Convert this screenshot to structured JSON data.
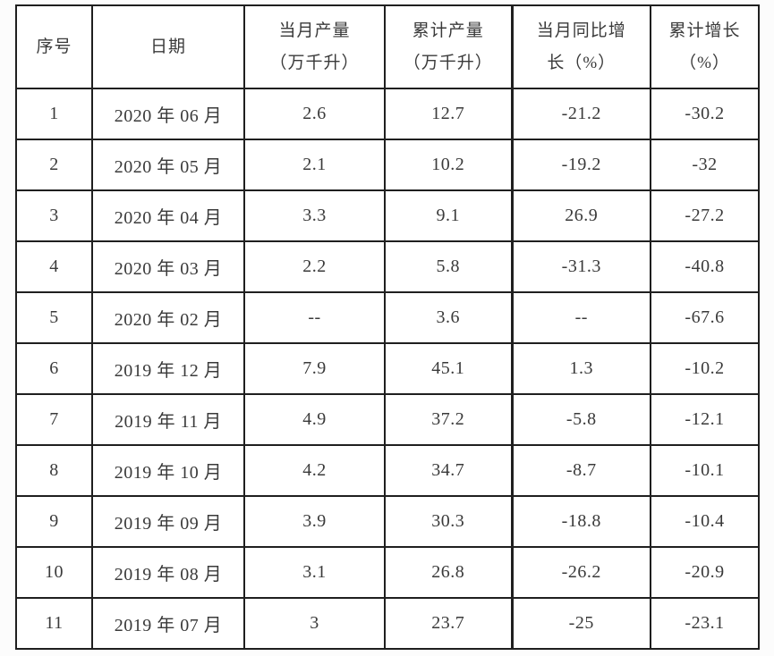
{
  "page": {
    "background_color": "#fcfcfc",
    "cell_background_color": "#ffffff",
    "border_color": "#1f1f1f",
    "text_color": "#3a3a3a"
  },
  "table": {
    "columns": [
      {
        "id": "index",
        "label": "序号",
        "label_lines": [
          "序号"
        ]
      },
      {
        "id": "date",
        "label": "日期",
        "label_lines": [
          "日期"
        ]
      },
      {
        "id": "monthly_output",
        "label": "当月产量（万千升）",
        "label_lines": [
          "当月产量",
          "（万千升）"
        ]
      },
      {
        "id": "cumulative_output",
        "label": "累计产量（万千升）",
        "label_lines": [
          "累计产量",
          "（万千升）"
        ]
      },
      {
        "id": "monthly_yoy_growth",
        "label": "当月同比增长（%）",
        "label_lines": [
          "当月同比增",
          "长（%）"
        ]
      },
      {
        "id": "cumulative_growth",
        "label": "累计增长（%）",
        "label_lines": [
          "累计增长",
          "（%）"
        ]
      }
    ],
    "rows": [
      {
        "index": "1",
        "date": "2020 年 06 月",
        "monthly_output": "2.6",
        "cumulative_output": "12.7",
        "monthly_yoy_growth": "-21.2",
        "cumulative_growth": "-30.2"
      },
      {
        "index": "2",
        "date": "2020 年 05 月",
        "monthly_output": "2.1",
        "cumulative_output": "10.2",
        "monthly_yoy_growth": "-19.2",
        "cumulative_growth": "-32"
      },
      {
        "index": "3",
        "date": "2020 年 04 月",
        "monthly_output": "3.3",
        "cumulative_output": "9.1",
        "monthly_yoy_growth": "26.9",
        "cumulative_growth": "-27.2"
      },
      {
        "index": "4",
        "date": "2020 年 03 月",
        "monthly_output": "2.2",
        "cumulative_output": "5.8",
        "monthly_yoy_growth": "-31.3",
        "cumulative_growth": "-40.8"
      },
      {
        "index": "5",
        "date": "2020 年 02 月",
        "monthly_output": "--",
        "cumulative_output": "3.6",
        "monthly_yoy_growth": "--",
        "cumulative_growth": "-67.6"
      },
      {
        "index": "6",
        "date": "2019 年 12 月",
        "monthly_output": "7.9",
        "cumulative_output": "45.1",
        "monthly_yoy_growth": "1.3",
        "cumulative_growth": "-10.2"
      },
      {
        "index": "7",
        "date": "2019 年 11 月",
        "monthly_output": "4.9",
        "cumulative_output": "37.2",
        "monthly_yoy_growth": "-5.8",
        "cumulative_growth": "-12.1"
      },
      {
        "index": "8",
        "date": "2019 年 10 月",
        "monthly_output": "4.2",
        "cumulative_output": "34.7",
        "monthly_yoy_growth": "-8.7",
        "cumulative_growth": "-10.1"
      },
      {
        "index": "9",
        "date": "2019 年 09 月",
        "monthly_output": "3.9",
        "cumulative_output": "30.3",
        "monthly_yoy_growth": "-18.8",
        "cumulative_growth": "-10.4"
      },
      {
        "index": "10",
        "date": "2019 年 08 月",
        "monthly_output": "3.1",
        "cumulative_output": "26.8",
        "monthly_yoy_growth": "-26.2",
        "cumulative_growth": "-20.9"
      },
      {
        "index": "11",
        "date": "2019 年 07 月",
        "monthly_output": "3",
        "cumulative_output": "23.7",
        "monthly_yoy_growth": "-25",
        "cumulative_growth": "-23.1"
      }
    ]
  },
  "chart_data": {
    "type": "table",
    "title": "",
    "columns": [
      "序号",
      "日期",
      "当月产量（万千升）",
      "累计产量（万千升）",
      "当月同比增长（%）",
      "累计增长（%）"
    ],
    "rows": [
      [
        "1",
        "2020 年 06 月",
        "2.6",
        "12.7",
        "-21.2",
        "-30.2"
      ],
      [
        "2",
        "2020 年 05 月",
        "2.1",
        "10.2",
        "-19.2",
        "-32"
      ],
      [
        "3",
        "2020 年 04 月",
        "3.3",
        "9.1",
        "26.9",
        "-27.2"
      ],
      [
        "4",
        "2020 年 03 月",
        "2.2",
        "5.8",
        "-31.3",
        "-40.8"
      ],
      [
        "5",
        "2020 年 02 月",
        "--",
        "3.6",
        "--",
        "-67.6"
      ],
      [
        "6",
        "2019 年 12 月",
        "7.9",
        "45.1",
        "1.3",
        "-10.2"
      ],
      [
        "7",
        "2019 年 11 月",
        "4.9",
        "37.2",
        "-5.8",
        "-12.1"
      ],
      [
        "8",
        "2019 年 10 月",
        "4.2",
        "34.7",
        "-8.7",
        "-10.1"
      ],
      [
        "9",
        "2019 年 09 月",
        "3.9",
        "30.3",
        "-18.8",
        "-10.4"
      ],
      [
        "10",
        "2019 年 08 月",
        "3.1",
        "26.8",
        "-26.2",
        "-20.9"
      ],
      [
        "11",
        "2019 年 07 月",
        "3",
        "23.7",
        "-25",
        "-23.1"
      ]
    ]
  }
}
